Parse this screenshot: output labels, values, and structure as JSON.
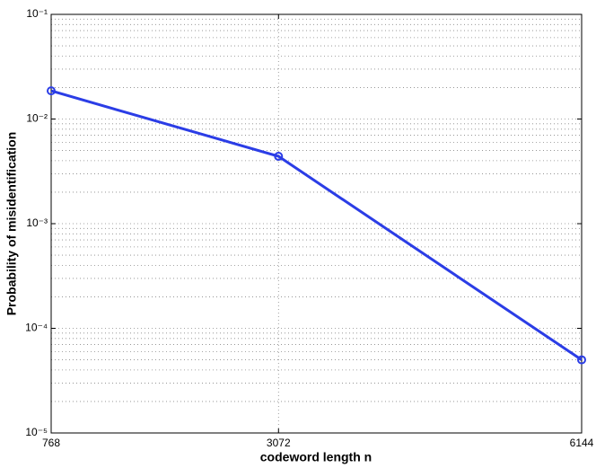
{
  "chart_data": {
    "type": "line",
    "x_label": "codeword length n",
    "y_label": "Probability of misidentification",
    "x": [
      768,
      3072,
      6144
    ],
    "series": [
      {
        "color": "#2b3de6",
        "values": [
          0.0186,
          0.0044,
          5e-05
        ]
      }
    ],
    "xlim": [
      768,
      6144
    ],
    "xticks": [
      768,
      3072,
      6144
    ],
    "ylim": [
      1e-05,
      0.1
    ],
    "yticks": [
      {
        "value": 1e-05,
        "label": "10⁻⁵"
      },
      {
        "value": 0.0001,
        "label": "10⁻⁴"
      },
      {
        "value": 0.001,
        "label": "10⁻³"
      },
      {
        "value": 0.01,
        "label": "10⁻²"
      },
      {
        "value": 0.1,
        "label": "10⁻¹"
      }
    ],
    "y_log": true,
    "grid": true
  }
}
